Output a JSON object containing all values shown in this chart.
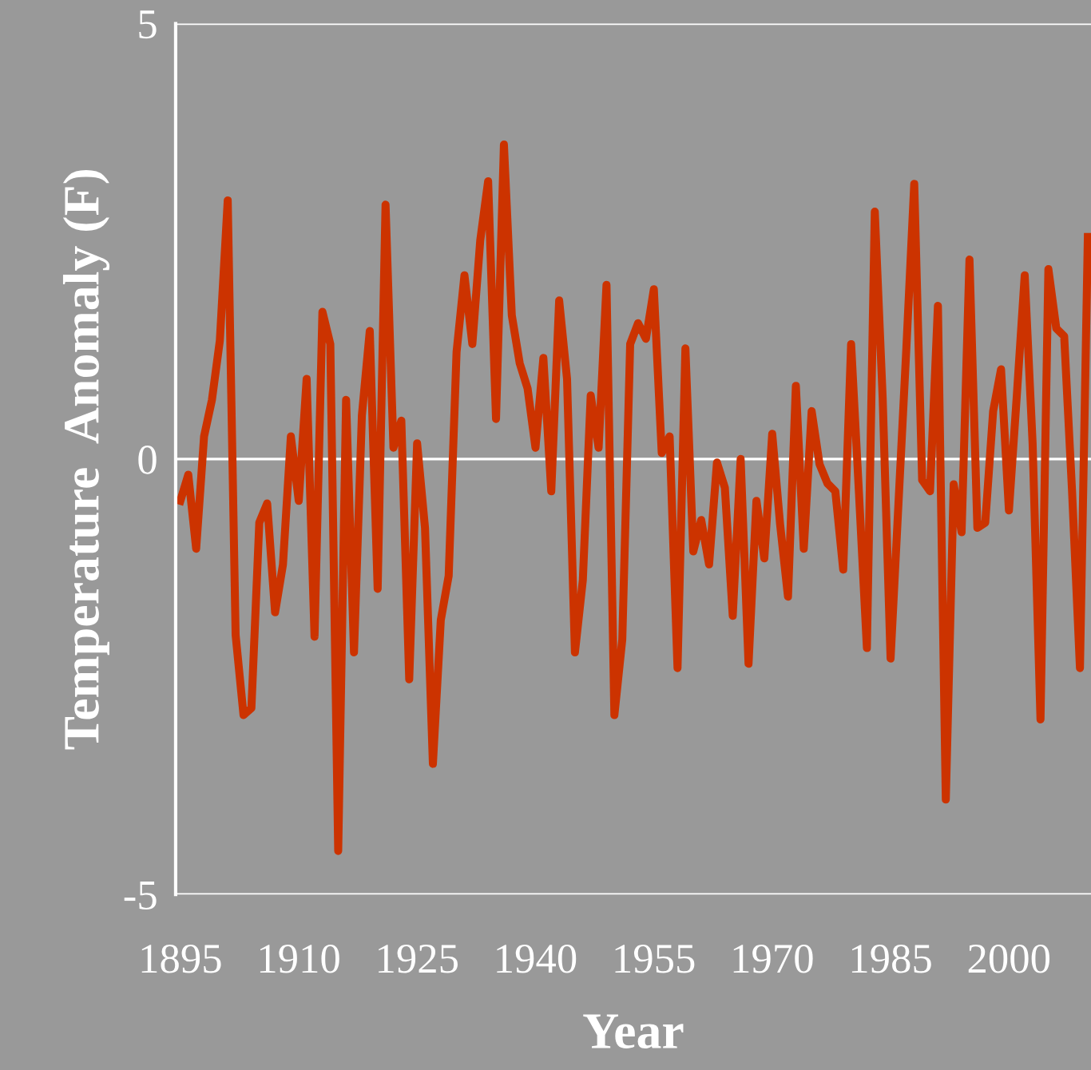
{
  "chart_data": {
    "type": "line",
    "xlabel": "Year",
    "ylabel": "Temperature  Anomaly (F)",
    "x": [
      1895,
      1896,
      1897,
      1898,
      1899,
      1900,
      1901,
      1902,
      1903,
      1904,
      1905,
      1906,
      1907,
      1908,
      1909,
      1910,
      1911,
      1912,
      1913,
      1914,
      1915,
      1916,
      1917,
      1918,
      1919,
      1920,
      1921,
      1922,
      1923,
      1924,
      1925,
      1926,
      1927,
      1928,
      1929,
      1930,
      1931,
      1932,
      1933,
      1934,
      1935,
      1936,
      1937,
      1938,
      1939,
      1940,
      1941,
      1942,
      1943,
      1944,
      1945,
      1946,
      1947,
      1948,
      1949,
      1950,
      1951,
      1952,
      1953,
      1954,
      1955,
      1956,
      1957,
      1958,
      1959,
      1960,
      1961,
      1962,
      1963,
      1964,
      1965,
      1966,
      1967,
      1968,
      1969,
      1970,
      1971,
      1972,
      1973,
      1974,
      1975,
      1976,
      1977,
      1978,
      1979,
      1980,
      1981,
      1982,
      1983,
      1984,
      1985,
      1986,
      1987,
      1988,
      1989,
      1990,
      1991,
      1992,
      1993,
      1994,
      1995,
      1996,
      1997,
      1998,
      1999,
      2000,
      2001,
      2002,
      2003,
      2004,
      2005,
      2006,
      2007,
      2008,
      2009,
      2010
    ],
    "series": [
      {
        "color": "#cc3300",
        "values": [
          -0.48,
          -0.18,
          -1.03,
          0.26,
          0.68,
          1.36,
          2.97,
          -2.02,
          -2.94,
          -2.86,
          -0.73,
          -0.51,
          -1.76,
          -1.21,
          0.26,
          -0.48,
          0.92,
          -2.04,
          1.69,
          1.32,
          -4.5,
          0.68,
          -2.22,
          0.5,
          1.47,
          -1.49,
          2.92,
          0.13,
          0.44,
          -2.53,
          0.18,
          -0.79,
          -3.5,
          -1.85,
          -1.34,
          1.23,
          2.11,
          1.32,
          2.51,
          3.19,
          0.46,
          3.61,
          1.65,
          1.1,
          0.81,
          0.13,
          1.16,
          -0.37,
          1.82,
          0.92,
          -2.22,
          -1.39,
          0.73,
          0.13,
          2.0,
          -2.94,
          -2.07,
          1.32,
          1.56,
          1.38,
          1.95,
          0.07,
          0.26,
          -2.4,
          1.27,
          -1.06,
          -0.7,
          -1.21,
          -0.04,
          -0.33,
          -1.8,
          0.0,
          -2.35,
          -0.48,
          -1.14,
          0.29,
          -0.75,
          -1.58,
          0.84,
          -1.03,
          0.55,
          -0.06,
          -0.28,
          -0.37,
          -1.27,
          1.32,
          -0.4,
          -2.17,
          2.84,
          0.7,
          -2.29,
          -0.51,
          1.27,
          3.16,
          -0.24,
          -0.37,
          1.76,
          -3.91,
          -0.29,
          -0.84,
          2.29,
          -0.79,
          -0.73,
          0.55,
          1.03,
          -0.59,
          0.73,
          2.11,
          0.18,
          -2.99,
          2.18,
          1.5,
          1.41,
          -0.37,
          -2.4,
          2.55
        ]
      }
    ],
    "xlim": [
      1894.4,
      2010.4
    ],
    "xticks": [
      1895,
      1910,
      1925,
      1940,
      1955,
      1970,
      1985,
      2000
    ],
    "ylim": [
      -5,
      5
    ],
    "yticks": [
      {
        "value": -5,
        "label": "-5"
      },
      0,
      5
    ],
    "grid": "y",
    "marker": "none",
    "line_style": "solid"
  }
}
